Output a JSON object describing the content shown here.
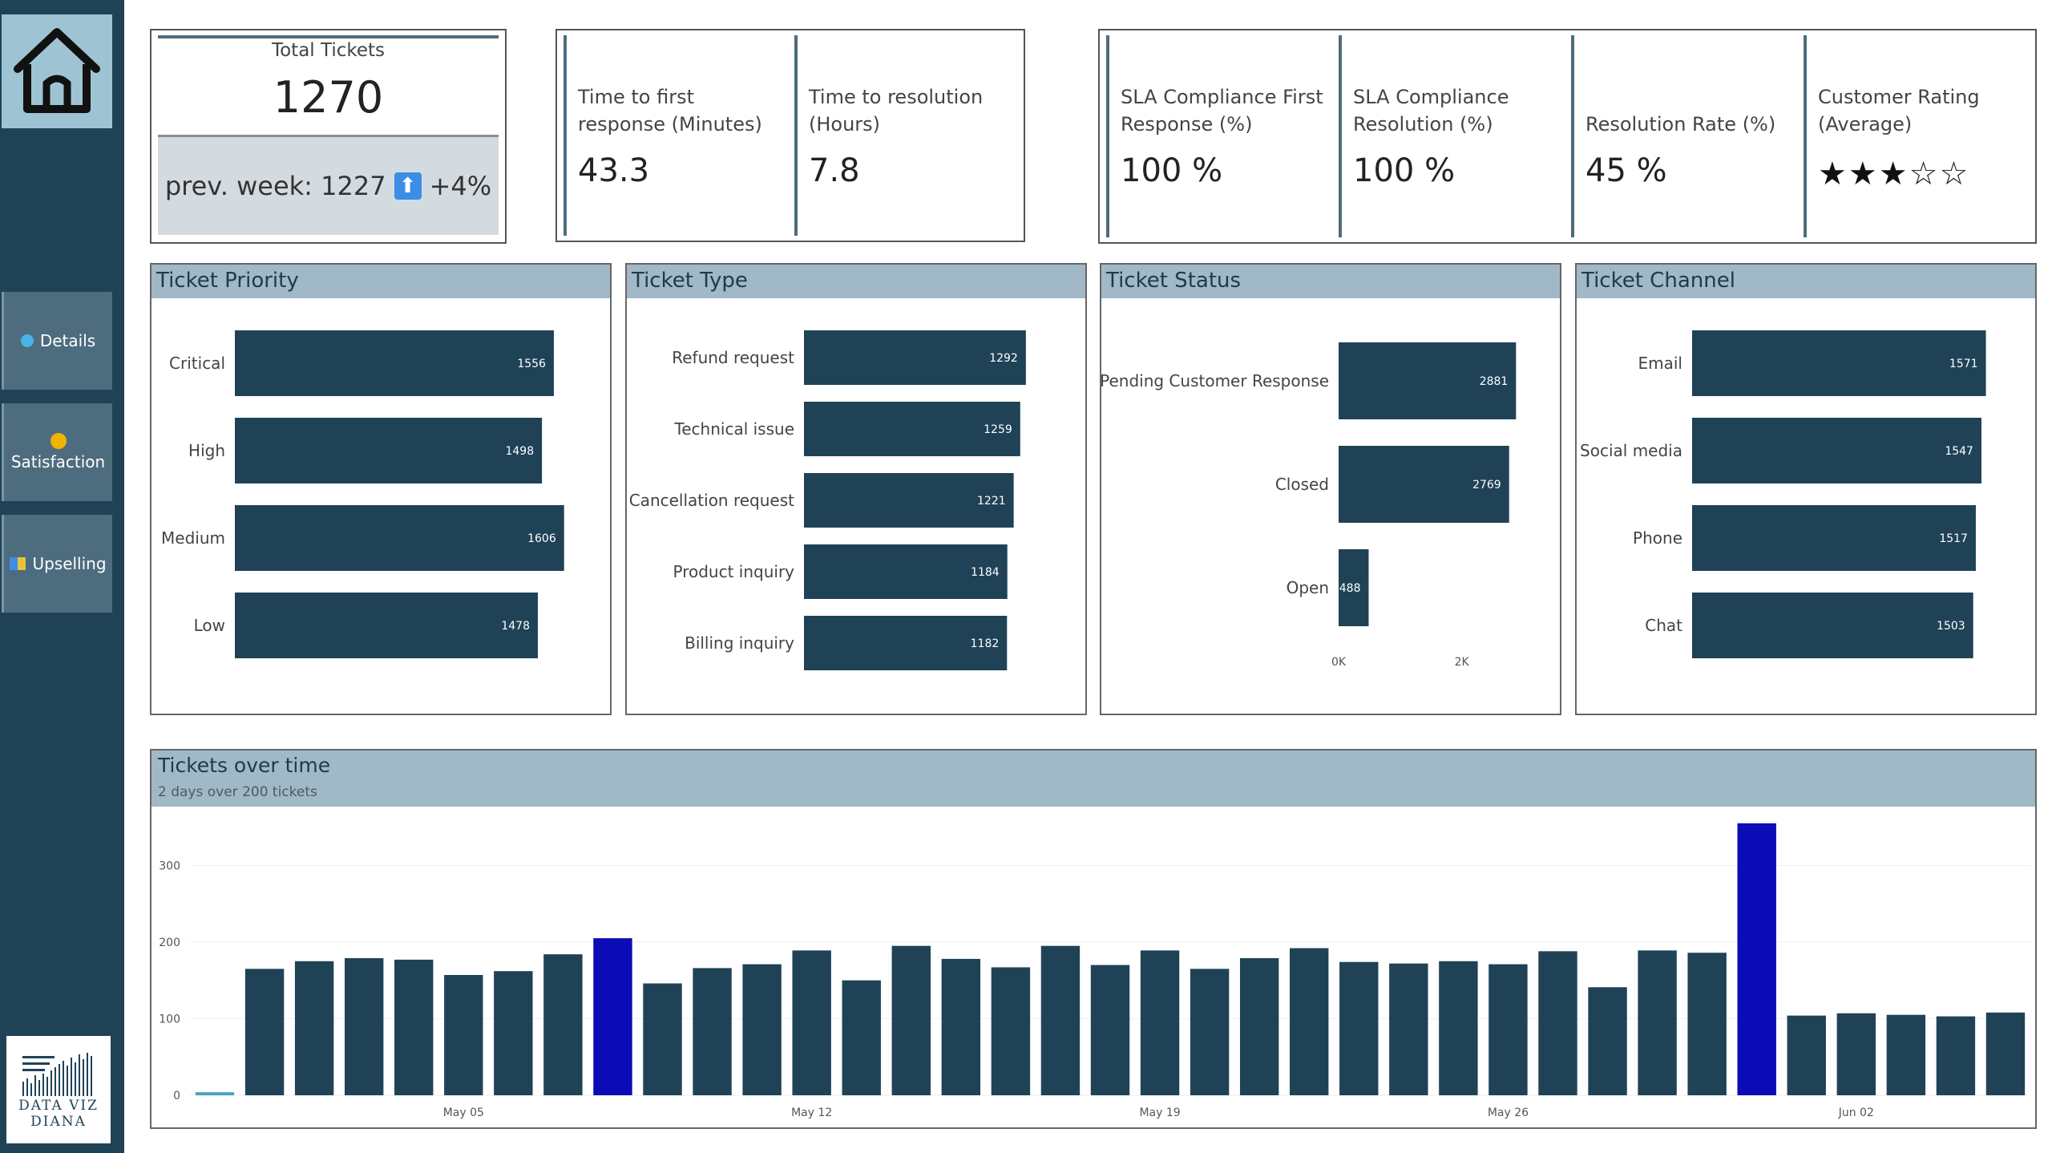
{
  "nav": {
    "home_icon": "home-icon",
    "items": [
      {
        "label": "Details",
        "icon": "pin-icon"
      },
      {
        "label": "Satisfaction",
        "icon": "smiley-icon"
      },
      {
        "label": "Upselling",
        "icon": "chart-icon"
      }
    ],
    "logo": {
      "line1": "DATA VIZ",
      "line2": "DIANA"
    }
  },
  "kpi_total": {
    "title": "Total Tickets",
    "value": "1270",
    "prev_label": "prev. week: 1227",
    "change": "+4%"
  },
  "kpi_times": [
    {
      "label": "Time to first response (Minutes)",
      "value": "43.3"
    },
    {
      "label": "Time to resolution (Hours)",
      "value": "7.8"
    }
  ],
  "kpi_sla": [
    {
      "label": "SLA Compliance First Response (%)",
      "value": "100 %"
    },
    {
      "label": "SLA Compliance Resolution (%)",
      "value": "100 %"
    },
    {
      "label": "Resolution Rate (%)",
      "value": "45 %"
    },
    {
      "label": "Customer Rating (Average)",
      "value": "★★★☆☆"
    }
  ],
  "colors": {
    "bar": "#1f4257",
    "highlight": "#0b0cb5",
    "first": "#4aa3c0",
    "header": "#a1b8c6"
  },
  "chart_data": [
    {
      "type": "bar",
      "title": "Ticket Priority",
      "orientation": "horizontal",
      "categories": [
        "Critical",
        "High",
        "Medium",
        "Low"
      ],
      "values": [
        1556,
        1498,
        1606,
        1478
      ]
    },
    {
      "type": "bar",
      "title": "Ticket Type",
      "orientation": "horizontal",
      "categories": [
        "Refund request",
        "Technical issue",
        "Cancellation request",
        "Product inquiry",
        "Billing inquiry"
      ],
      "values": [
        1292,
        1259,
        1221,
        1184,
        1182
      ]
    },
    {
      "type": "bar",
      "title": "Ticket Status",
      "orientation": "horizontal",
      "categories": [
        "Pending Customer Response",
        "Closed",
        "Open"
      ],
      "values": [
        2881,
        2769,
        488
      ],
      "x_ticks": [
        "0K",
        "2K"
      ]
    },
    {
      "type": "bar",
      "title": "Ticket Channel",
      "orientation": "horizontal",
      "categories": [
        "Email",
        "Social media",
        "Phone",
        "Chat"
      ],
      "values": [
        1571,
        1547,
        1517,
        1503
      ]
    },
    {
      "type": "bar",
      "title": "Tickets over time",
      "subtitle": "2 days over 200 tickets",
      "ylim": [
        0,
        360
      ],
      "y_ticks": [
        0,
        100,
        200,
        300
      ],
      "x_tick_labels": [
        "May 05",
        "May 12",
        "May 19",
        "May 26",
        "Jun 02"
      ],
      "x_tick_index": [
        5,
        12,
        19,
        26,
        33
      ],
      "values": [
        4,
        165,
        175,
        179,
        177,
        157,
        162,
        184,
        205,
        146,
        166,
        171,
        189,
        150,
        195,
        178,
        167,
        195,
        170,
        189,
        165,
        179,
        192,
        174,
        172,
        175,
        171,
        188,
        141,
        189,
        186,
        355,
        104,
        107,
        105,
        103,
        108
      ],
      "highlight_index": [
        8,
        31
      ],
      "first_index": 0
    }
  ]
}
